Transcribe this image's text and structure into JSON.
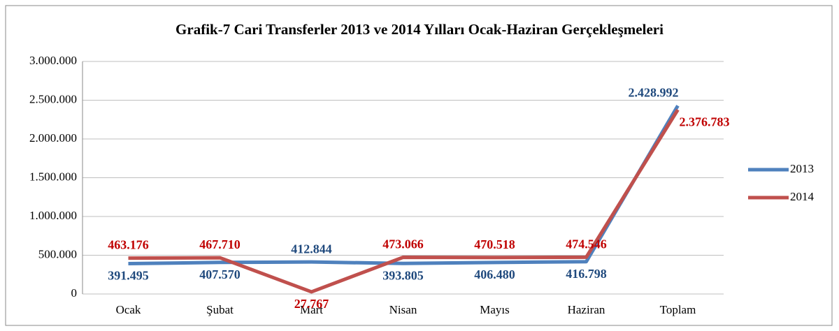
{
  "chart_data": {
    "type": "line",
    "title": "Grafik-7 Cari Transferler 2013 ve 2014 Yılları Ocak-Haziran Gerçekleşmeleri",
    "categories": [
      "Ocak",
      "Şubat",
      "Mart",
      "Nisan",
      "Mayıs",
      "Haziran",
      "Toplam"
    ],
    "series": [
      {
        "name": "2013",
        "color": "#4f81bd",
        "values": [
          391495,
          407570,
          412844,
          393805,
          406480,
          416798,
          2428992
        ],
        "value_labels": [
          "391.495",
          "407.570",
          "412.844",
          "393.805",
          "406.480",
          "416.798",
          "2.428.992"
        ]
      },
      {
        "name": "2014",
        "color": "#c0504d",
        "values": [
          463176,
          467710,
          27767,
          473066,
          470518,
          474546,
          2376783
        ],
        "value_labels": [
          "463.176",
          "467.710",
          "27.767",
          "473.066",
          "470.518",
          "474.546",
          "2.376.783"
        ]
      }
    ],
    "ylim": [
      0,
      3000000
    ],
    "yticks": [
      0,
      {
        "value": 500000,
        "label": "500.000"
      },
      {
        "value": 1000000,
        "label": "1.000.000"
      },
      {
        "value": 1500000,
        "label": "1.500.000"
      },
      {
        "value": 2000000,
        "label": "2.000.000"
      },
      {
        "value": 2500000,
        "label": "2.500.000"
      },
      {
        "value": 3000000,
        "label": "3.000.000"
      }
    ],
    "grid": true,
    "legend": "right"
  }
}
